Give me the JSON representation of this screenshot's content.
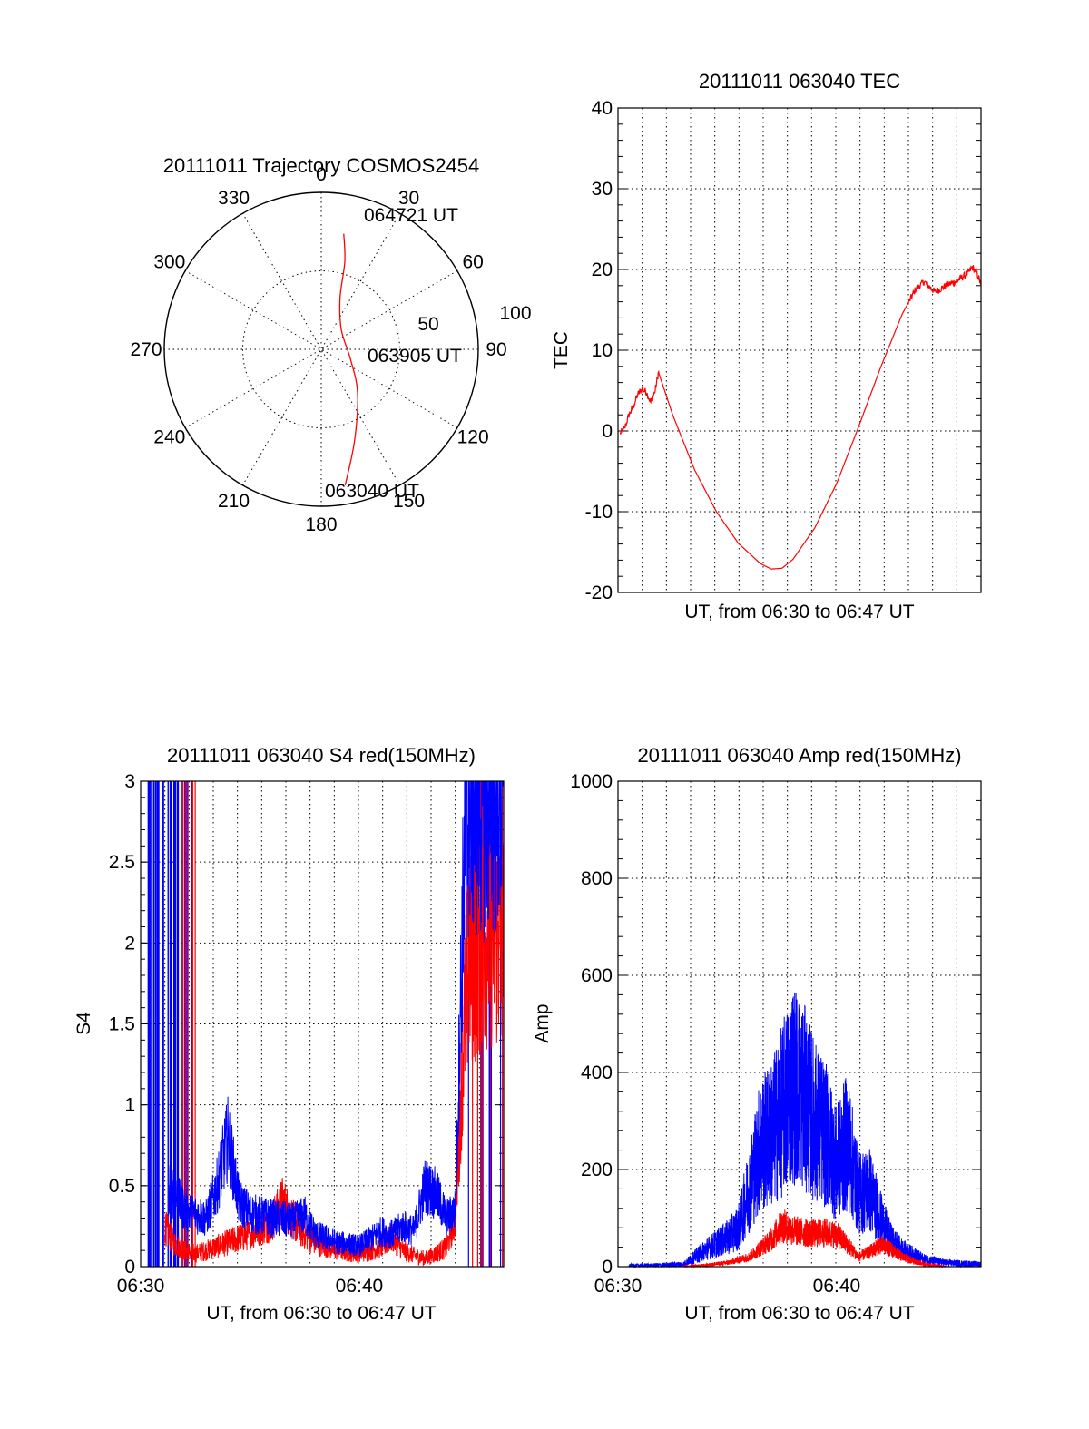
{
  "colors": {
    "red": "#ff0000",
    "blue": "#0000ff",
    "axis": "#000000",
    "grid": "#000000",
    "background": "#ffffff"
  },
  "chart_data": [
    {
      "id": "trajectory",
      "type": "polar",
      "title": "20111011 Trajectory COSMOS2454",
      "angle_labels": [
        "0",
        "30",
        "60",
        "90",
        "120",
        "150",
        "180",
        "210",
        "240",
        "270",
        "300",
        "330"
      ],
      "radius_labels": [
        "50",
        "100"
      ],
      "rlim": [
        0,
        100
      ],
      "grid": true,
      "series": [
        {
          "color": "#ff0000",
          "points": [
            {
              "az": 11,
              "r": 75
            },
            {
              "az": 15,
              "r": 58
            },
            {
              "az": 20,
              "r": 35
            },
            {
              "az": 45,
              "r": 18
            },
            {
              "az": 110,
              "r": 20
            },
            {
              "az": 140,
              "r": 36
            },
            {
              "az": 160,
              "r": 62
            },
            {
              "az": 170,
              "r": 88
            }
          ]
        }
      ],
      "annotations": [
        "064721 UT",
        "063905 UT",
        "063040 UT"
      ]
    },
    {
      "id": "tec",
      "type": "line",
      "title": "20111011 063040 TEC",
      "xlabel": "UT, from 06:30 to 06:47 UT",
      "ylabel": "TEC",
      "xlim": [
        0,
        16.6
      ],
      "ylim": [
        -20,
        40
      ],
      "yticks": [
        -20,
        -10,
        0,
        10,
        20,
        30,
        40
      ],
      "xticks": [],
      "grid": true,
      "series": [
        {
          "color": "#ff0000",
          "points": [
            [
              0.1,
              -0.3
            ],
            [
              0.3,
              0.3
            ],
            [
              0.5,
              2.0
            ],
            [
              0.7,
              3.0
            ],
            [
              0.9,
              4.5
            ],
            [
              1.1,
              5.2
            ],
            [
              1.3,
              4.8
            ],
            [
              1.5,
              3.5
            ],
            [
              1.7,
              5.0
            ],
            [
              1.85,
              7.3
            ],
            [
              2.5,
              2.0
            ],
            [
              3.5,
              -4.8
            ],
            [
              4.5,
              -10.0
            ],
            [
              5.5,
              -13.9
            ],
            [
              6.5,
              -16.4
            ],
            [
              7.0,
              -17.1
            ],
            [
              7.5,
              -17.0
            ],
            [
              8.0,
              -15.9
            ],
            [
              9.0,
              -12.0
            ],
            [
              10.0,
              -6.5
            ],
            [
              11.0,
              0.5
            ],
            [
              12.0,
              7.8
            ],
            [
              13.0,
              14.5
            ],
            [
              13.6,
              17.5
            ],
            [
              14.0,
              18.5
            ],
            [
              14.5,
              17.2
            ],
            [
              15.0,
              18.0
            ],
            [
              15.5,
              18.6
            ],
            [
              16.0,
              19.5
            ],
            [
              16.2,
              20.3
            ],
            [
              16.4,
              19.6
            ],
            [
              16.6,
              18.2
            ]
          ]
        }
      ]
    },
    {
      "id": "s4",
      "type": "line",
      "title": "20111011 063040 S4 red(150MHz)",
      "xlabel": "UT, from 06:30 to 06:47 UT",
      "ylabel": "S4",
      "xlim": [
        0,
        16.6
      ],
      "ylim": [
        0,
        3
      ],
      "yticks": [
        "0",
        "0.5",
        "1",
        "1.5",
        "2",
        "2.5",
        "3"
      ],
      "xticks": [
        {
          "value": 0,
          "label": "06:30"
        },
        {
          "value": 10,
          "label": "06:40"
        }
      ],
      "grid": true,
      "series": [
        {
          "name": "",
          "color": "#ff0000",
          "points": [
            [
              1.1,
              0.25
            ],
            [
              1.5,
              0.15
            ],
            [
              2,
              0.1
            ],
            [
              2.5,
              0.08
            ],
            [
              3,
              0.1
            ],
            [
              4,
              0.15
            ],
            [
              5,
              0.2
            ],
            [
              6,
              0.28
            ],
            [
              6.5,
              0.4
            ],
            [
              7,
              0.28
            ],
            [
              7.5,
              0.2
            ],
            [
              8,
              0.15
            ],
            [
              9,
              0.1
            ],
            [
              10,
              0.08
            ],
            [
              11,
              0.12
            ],
            [
              11.5,
              0.18
            ],
            [
              12,
              0.1
            ],
            [
              12.5,
              0.07
            ],
            [
              13,
              0.05
            ],
            [
              13.5,
              0.08
            ],
            [
              14,
              0.12
            ],
            [
              14.4,
              0.3
            ],
            [
              14.6,
              0.9
            ],
            [
              14.8,
              1.5
            ],
            [
              15.0,
              1.9
            ],
            [
              15.5,
              2.0
            ],
            [
              16,
              2.1
            ],
            [
              16.6,
              2.0
            ]
          ]
        },
        {
          "name": "",
          "color": "#0000ff",
          "points": [
            [
              1.3,
              0.5
            ],
            [
              2,
              0.35
            ],
            [
              3,
              0.3
            ],
            [
              3.5,
              0.5
            ],
            [
              4,
              0.8
            ],
            [
              4.5,
              0.4
            ],
            [
              5,
              0.33
            ],
            [
              6,
              0.3
            ],
            [
              7,
              0.28
            ],
            [
              7.5,
              0.32
            ],
            [
              8,
              0.2
            ],
            [
              9,
              0.15
            ],
            [
              10,
              0.13
            ],
            [
              10.5,
              0.17
            ],
            [
              11,
              0.22
            ],
            [
              11.5,
              0.2
            ],
            [
              12,
              0.25
            ],
            [
              12.5,
              0.22
            ],
            [
              13,
              0.5
            ],
            [
              13.5,
              0.45
            ],
            [
              14,
              0.3
            ],
            [
              14.4,
              0.35
            ],
            [
              14.6,
              1.5
            ],
            [
              14.8,
              2.5
            ],
            [
              15,
              2.9
            ],
            [
              16.6,
              2.9
            ]
          ]
        }
      ]
    },
    {
      "id": "amp",
      "type": "line",
      "title": "20111011 063040 Amp red(150MHz)",
      "xlabel": "UT, from 06:30 to 06:47 UT",
      "ylabel": "Amp",
      "xlim": [
        0,
        16.6
      ],
      "ylim": [
        0,
        1000
      ],
      "yticks": [
        "0",
        "200",
        "400",
        "600",
        "800",
        "1000"
      ],
      "xticks": [
        {
          "value": 0,
          "label": "06:30"
        },
        {
          "value": 10,
          "label": "06:40"
        }
      ],
      "grid": true,
      "series": [
        {
          "name": "",
          "color": "#ff0000",
          "points": [
            [
              3,
              0
            ],
            [
              4,
              3
            ],
            [
              5,
              8
            ],
            [
              6,
              20
            ],
            [
              7,
              55
            ],
            [
              7.5,
              85
            ],
            [
              8,
              75
            ],
            [
              8.5,
              70
            ],
            [
              9,
              68
            ],
            [
              9.5,
              70
            ],
            [
              10,
              65
            ],
            [
              10.5,
              45
            ],
            [
              11,
              20
            ],
            [
              11.5,
              30
            ],
            [
              12,
              45
            ],
            [
              12.5,
              35
            ],
            [
              13,
              20
            ],
            [
              14,
              5
            ],
            [
              15,
              0
            ]
          ]
        },
        {
          "name": "",
          "color": "#0000ff",
          "points": [
            [
              0.5,
              2
            ],
            [
              2,
              3
            ],
            [
              3,
              5
            ],
            [
              3.5,
              20
            ],
            [
              4,
              35
            ],
            [
              5,
              60
            ],
            [
              5.5,
              80
            ],
            [
              6,
              160
            ],
            [
              6.5,
              250
            ],
            [
              7,
              270
            ],
            [
              7.5,
              320
            ],
            [
              8,
              380
            ],
            [
              8.5,
              350
            ],
            [
              9,
              300
            ],
            [
              9.5,
              270
            ],
            [
              10,
              210
            ],
            [
              10.5,
              260
            ],
            [
              11,
              150
            ],
            [
              11.5,
              160
            ],
            [
              12,
              100
            ],
            [
              12.5,
              55
            ],
            [
              13,
              35
            ],
            [
              14,
              15
            ],
            [
              15,
              8
            ],
            [
              16.6,
              5
            ]
          ]
        }
      ]
    }
  ]
}
